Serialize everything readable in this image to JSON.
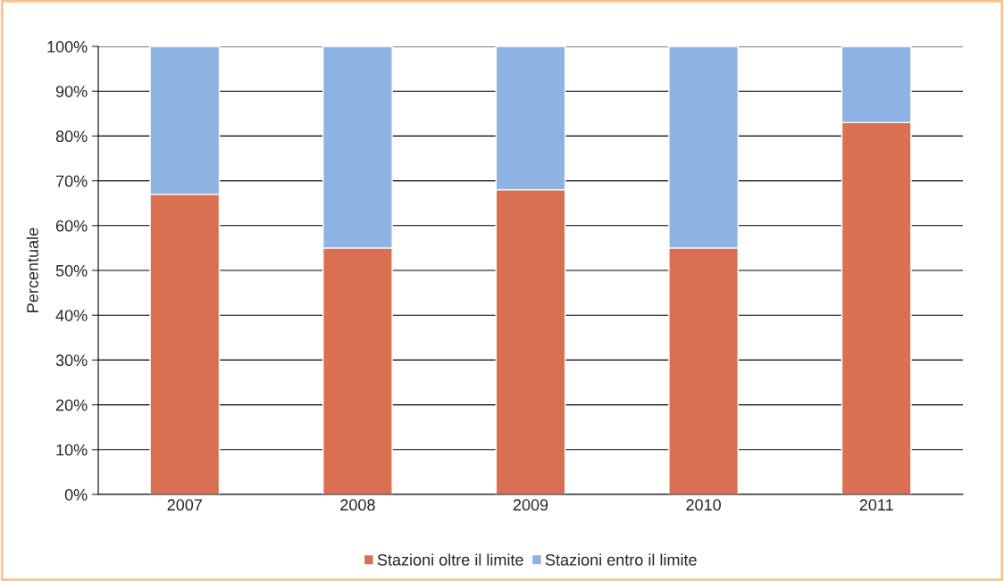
{
  "chart_data": {
    "type": "bar",
    "stacked": true,
    "ylabel": "Percentuale",
    "categories": [
      "2007",
      "2008",
      "2009",
      "2010",
      "2011"
    ],
    "series": [
      {
        "name": "Stazioni oltre il limite",
        "color": "#d97052",
        "values": [
          67,
          55,
          68,
          55,
          83
        ]
      },
      {
        "name": "Stazioni entro il limite",
        "color": "#8db3e2",
        "values": [
          33,
          45,
          32,
          45,
          17
        ]
      }
    ],
    "ylim": [
      0,
      100
    ],
    "yticks": [
      {
        "value": 0,
        "label": "0%"
      },
      {
        "value": 10,
        "label": "10%"
      },
      {
        "value": 20,
        "label": "20%"
      },
      {
        "value": 30,
        "label": "30%"
      },
      {
        "value": 40,
        "label": "40%"
      },
      {
        "value": 50,
        "label": "50%"
      },
      {
        "value": 60,
        "label": "60%"
      },
      {
        "value": 70,
        "label": "70%"
      },
      {
        "value": 80,
        "label": "80%"
      },
      {
        "value": 90,
        "label": "90%"
      },
      {
        "value": 100,
        "label": "100%"
      }
    ],
    "grid": "y",
    "legend": "bottom"
  }
}
